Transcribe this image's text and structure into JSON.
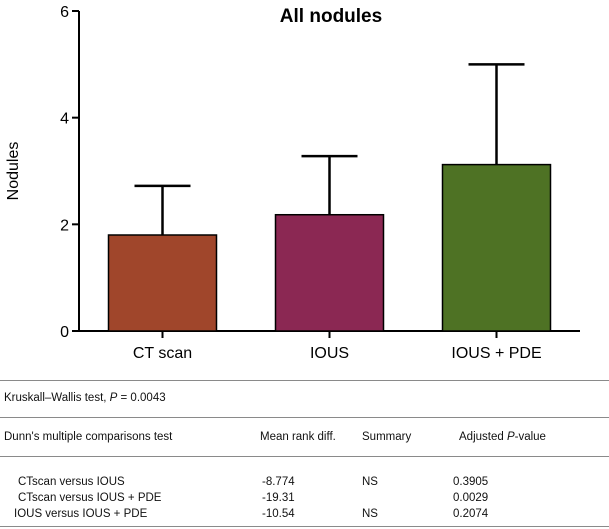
{
  "chart_data": {
    "type": "bar",
    "title": "All nodules",
    "ylabel": "Nodules",
    "xlabel": "",
    "categories": [
      "CT scan",
      "IOUS",
      "IOUS + PDE"
    ],
    "values": [
      1.8,
      2.18,
      3.12
    ],
    "error_upper": [
      2.72,
      3.28,
      5.0
    ],
    "bar_colors": [
      "#a0462b",
      "#8b2853",
      "#4e7224"
    ],
    "ylim": [
      0,
      6
    ],
    "yticks": [
      0,
      2,
      4,
      6
    ],
    "grid": false,
    "legend": "none"
  },
  "stats": {
    "test_prefix": "Kruskall–Wallis test, ",
    "p_symbol": "P",
    "p_value_text": " = 0.0043",
    "header": {
      "test": "Dunn's multiple comparisons test",
      "diff": "Mean rank diff.",
      "summary": "Summary",
      "adj_prefix": "Adjusted ",
      "adj_p": "P",
      "adj_suffix": "-value"
    },
    "rows": [
      {
        "comparison": "CTscan versus IOUS",
        "diff": "-8.774",
        "summary": "NS",
        "pvalue": "0.3905"
      },
      {
        "comparison": "CTscan versus IOUS + PDE",
        "diff": "-19.31",
        "summary": "",
        "pvalue": "0.0029"
      },
      {
        "comparison": " IOUS versus IOUS + PDE",
        "diff": "-10.54",
        "summary": "NS",
        "pvalue": "0.2074"
      }
    ]
  }
}
